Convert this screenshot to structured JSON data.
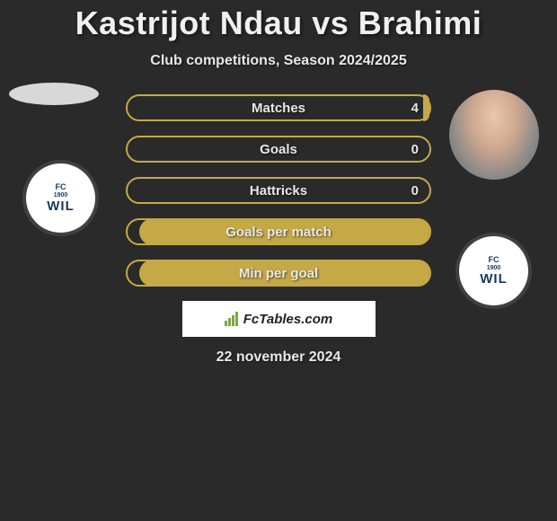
{
  "title": "Kastrijot Ndau vs Brahimi",
  "subtitle": "Club competitions, Season 2024/2025",
  "date": "22 november 2024",
  "footer_brand": "FcTables.com",
  "colors": {
    "background": "#2a2a2a",
    "accent": "#c5a947",
    "text": "#e8e8e8",
    "footer_bg": "#ffffff",
    "footer_icon": "#7aa843"
  },
  "club_logo": {
    "fc": "FC",
    "year": "1900",
    "name": "WIL"
  },
  "stats": [
    {
      "label": "Matches",
      "value_right": "4",
      "fill_pct": 2
    },
    {
      "label": "Goals",
      "value_right": "0",
      "fill_pct": 0
    },
    {
      "label": "Hattricks",
      "value_right": "0",
      "fill_pct": 0
    },
    {
      "label": "Goals per match",
      "value_right": null,
      "fill_pct": 96
    },
    {
      "label": "Min per goal",
      "value_right": null,
      "fill_pct": 96
    }
  ]
}
